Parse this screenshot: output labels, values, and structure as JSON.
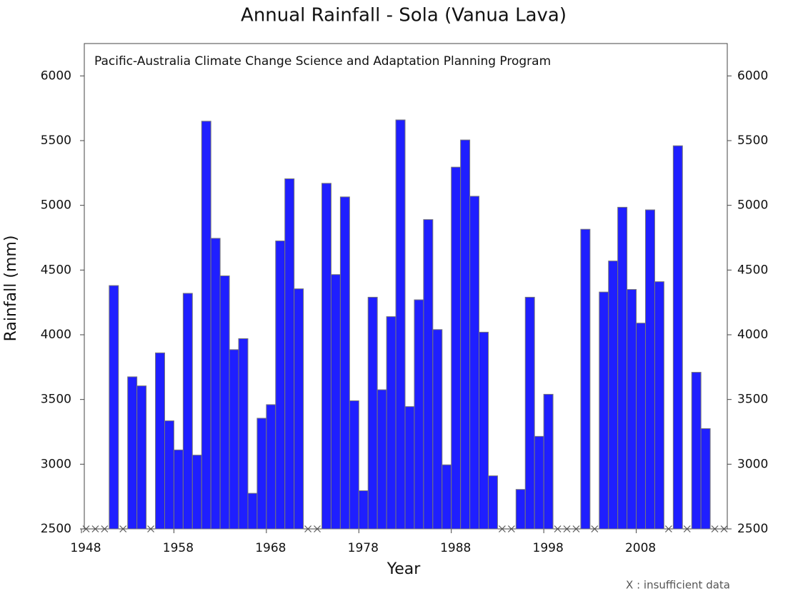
{
  "chart_data": {
    "type": "bar",
    "title": "Annual Rainfall - Sola (Vanua Lava)",
    "subtitle": "Pacific-Australia Climate Change Science and Adaptation Planning Program",
    "x_label": "Year",
    "y_label": "Rainfall (mm)",
    "note": "X : insufficient data",
    "color": "#1f1fff",
    "x": [
      1948,
      1949,
      1950,
      1951,
      1952,
      1953,
      1954,
      1955,
      1956,
      1957,
      1958,
      1959,
      1960,
      1961,
      1962,
      1963,
      1964,
      1965,
      1966,
      1967,
      1968,
      1969,
      1970,
      1971,
      1972,
      1973,
      1974,
      1975,
      1976,
      1977,
      1978,
      1979,
      1980,
      1981,
      1982,
      1983,
      1984,
      1985,
      1986,
      1987,
      1988,
      1989,
      1990,
      1991,
      1992,
      1993,
      1994,
      1995,
      1996,
      1997,
      1998,
      1999,
      2000,
      2001,
      2002,
      2003,
      2004,
      2005,
      2006,
      2007,
      2008,
      2009,
      2010,
      2011,
      2012,
      2013,
      2014,
      2015,
      2016,
      2017
    ],
    "values": [
      null,
      null,
      null,
      4380,
      null,
      3675,
      3605,
      null,
      3860,
      3335,
      3110,
      4320,
      3070,
      5650,
      4745,
      4455,
      3885,
      3970,
      2775,
      3355,
      3460,
      4725,
      5205,
      4355,
      null,
      null,
      5170,
      4465,
      5065,
      3490,
      2795,
      4290,
      3575,
      4140,
      5660,
      3445,
      4270,
      4890,
      4040,
      2995,
      5295,
      5505,
      5070,
      4020,
      2910,
      null,
      null,
      2805,
      4290,
      3215,
      3540,
      null,
      null,
      null,
      4815,
      null,
      4330,
      4570,
      4985,
      4350,
      4090,
      4965,
      4410,
      null,
      5460,
      null,
      3710,
      3275,
      null,
      null
    ],
    "xlim": [
      1948,
      2018
    ],
    "xticks": [
      1948,
      1958,
      1968,
      1978,
      1988,
      1998,
      2008
    ],
    "ylim": [
      2500,
      6250
    ],
    "yticks": [
      2500,
      3000,
      3500,
      4000,
      4500,
      5000,
      5500,
      6000
    ]
  }
}
